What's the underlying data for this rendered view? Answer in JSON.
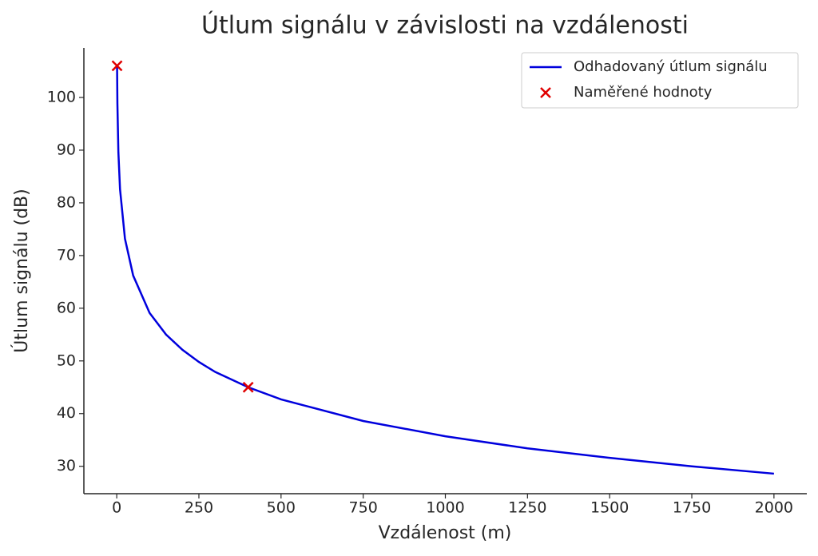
{
  "chart_data": {
    "type": "line",
    "title": "Útlum signálu v závislosti na vzdálenosti",
    "xlabel": "Vzdálenost (m)",
    "ylabel": "Útlum signálu (dB)",
    "xlim": [
      -100,
      2100
    ],
    "ylim": [
      24.8,
      109.4
    ],
    "xticks": [
      0,
      250,
      500,
      750,
      1000,
      1250,
      1500,
      1750,
      2000
    ],
    "yticks": [
      30,
      40,
      50,
      60,
      70,
      80,
      90,
      100
    ],
    "legend": "upper right",
    "series": [
      {
        "name": "Odhadovaný útlum signálu",
        "type": "line",
        "color": "#0000dd",
        "x": [
          1,
          2,
          5,
          10,
          25,
          50,
          100,
          150,
          200,
          250,
          300,
          400,
          500,
          750,
          1000,
          1250,
          1500,
          1750,
          2000
        ],
        "values": [
          106,
          98.9,
          89.6,
          82.6,
          73.2,
          66.2,
          59.1,
          55.0,
          52.1,
          49.8,
          47.9,
          45.0,
          42.7,
          38.6,
          35.7,
          33.4,
          31.6,
          30.0,
          28.6
        ]
      },
      {
        "name": "Naměřené hodnoty",
        "type": "scatter",
        "color": "#e00000",
        "x": [
          1,
          400
        ],
        "values": [
          106,
          45
        ]
      }
    ]
  }
}
